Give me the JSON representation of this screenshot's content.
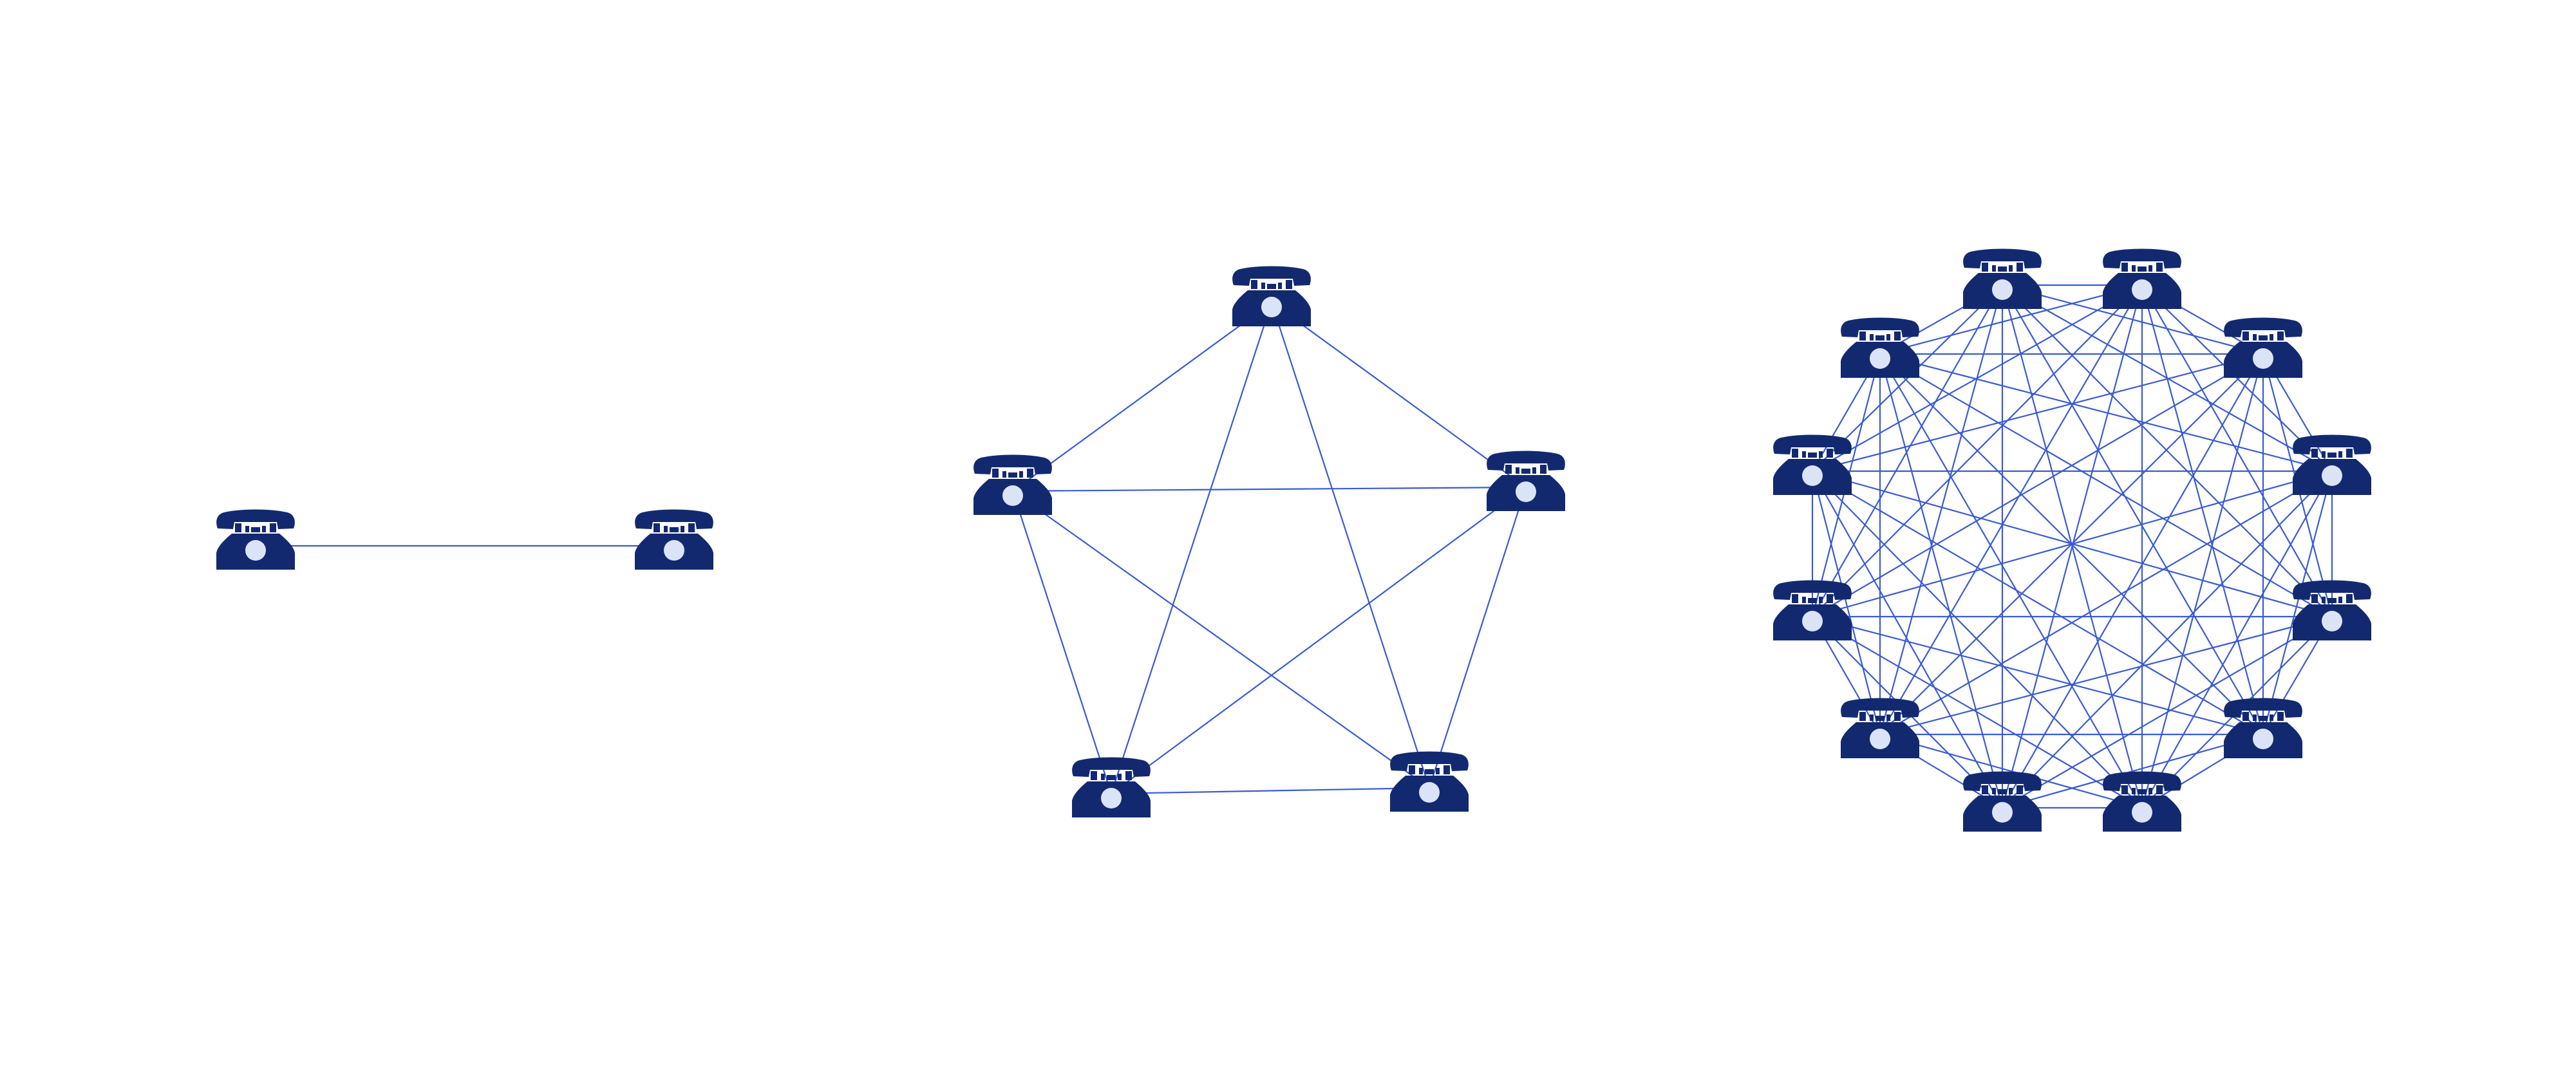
{
  "colors": {
    "background": "#ffffff",
    "phone": "#13296f",
    "dial": "#dbe4f7",
    "connection": "#3a5bcf"
  },
  "icon": "telephone-icon",
  "networks": [
    {
      "name": "network-2-phones",
      "phone_count": 2,
      "links": "all-to-all"
    },
    {
      "name": "network-5-phones",
      "phone_count": 5,
      "links": "all-to-all"
    },
    {
      "name": "network-12-phones",
      "phone_count": 12,
      "links": "all-to-all"
    }
  ]
}
